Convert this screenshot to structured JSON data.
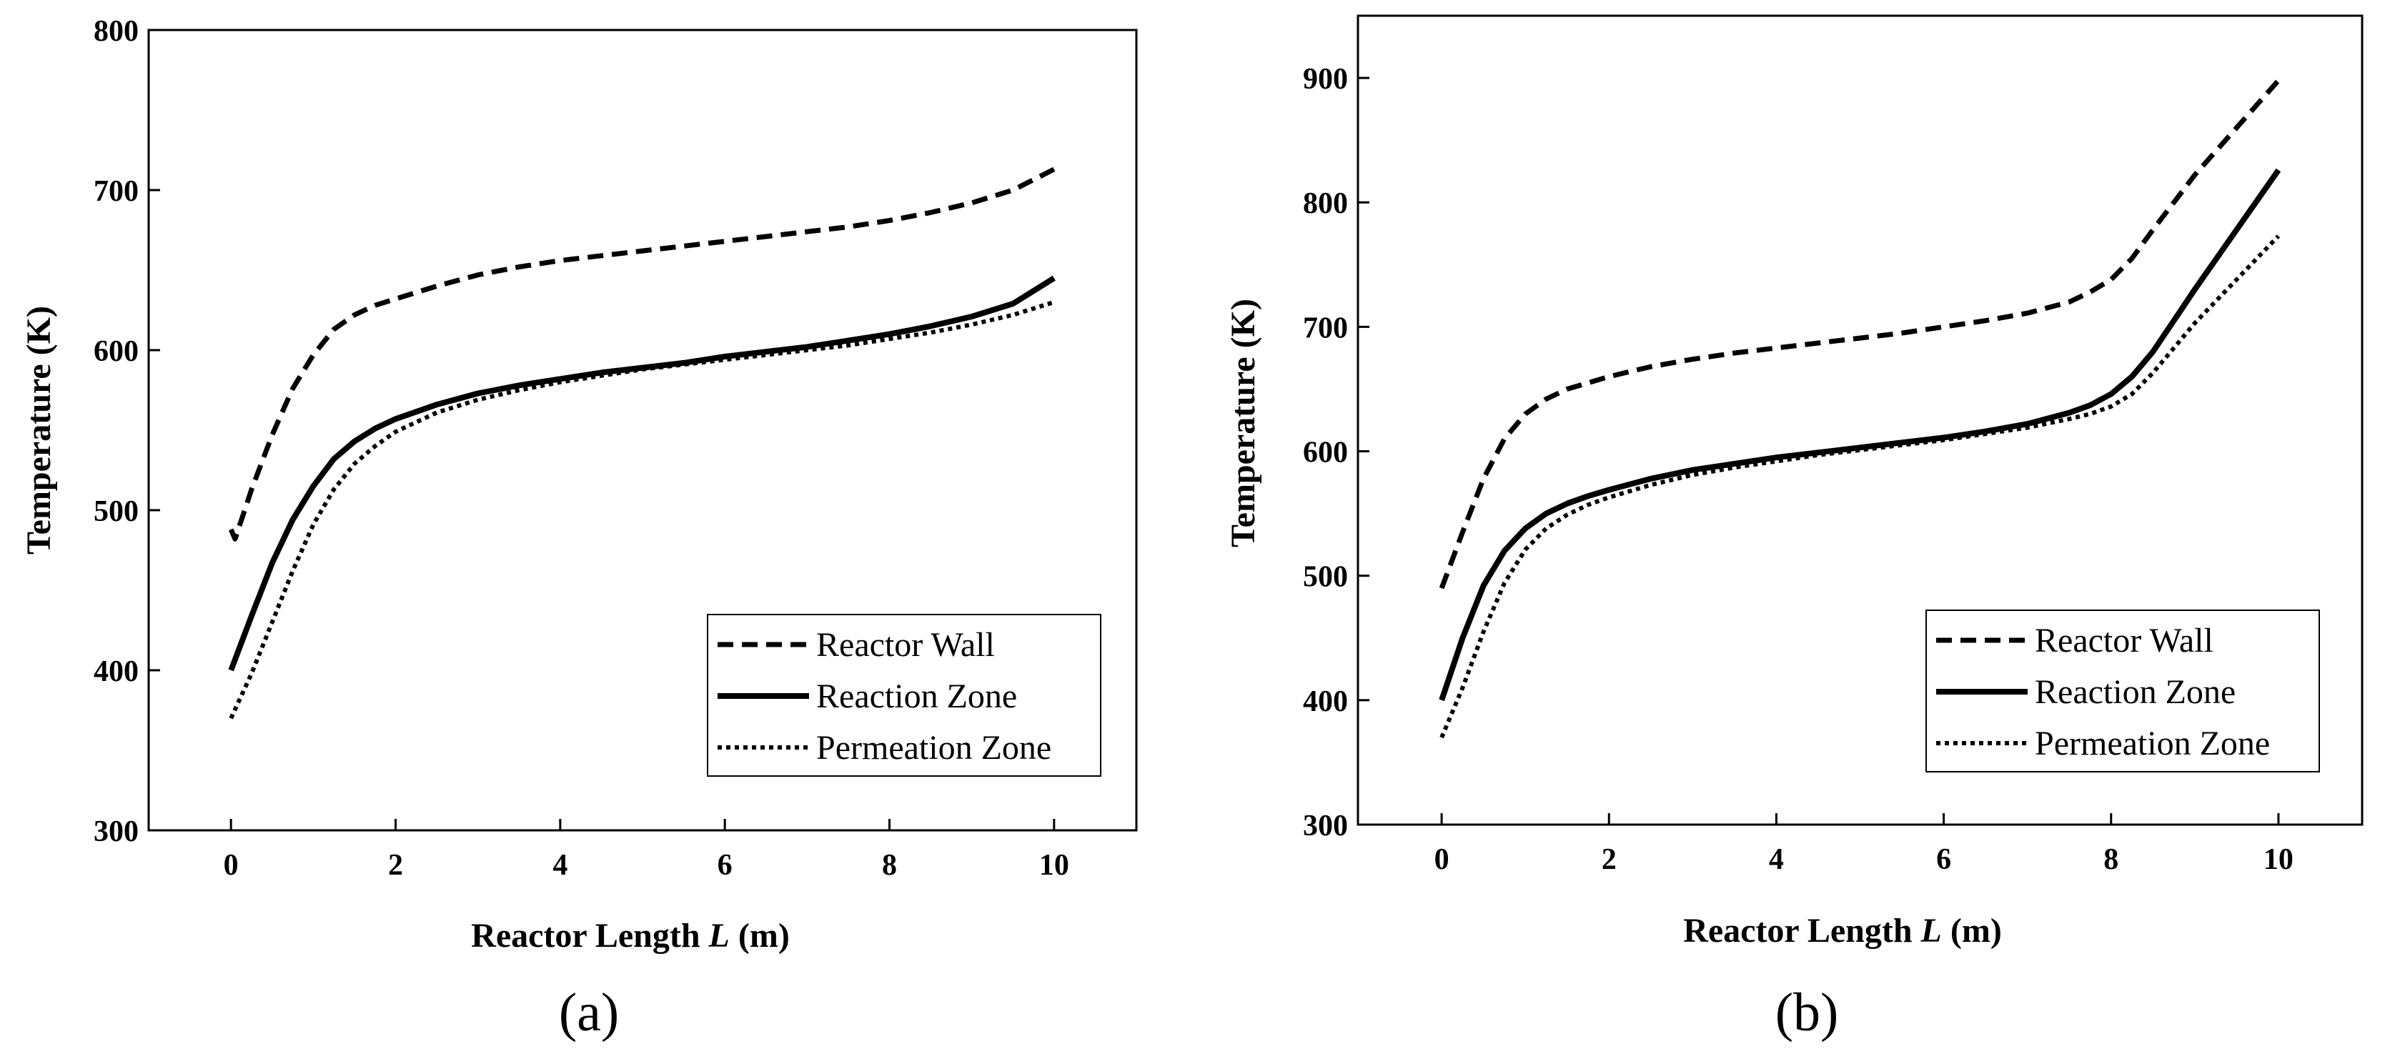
{
  "chart_data": [
    {
      "panel": "a",
      "type": "line",
      "caption": "(a)",
      "xlabel_parts": [
        "Reactor Length ",
        "L",
        " (m)"
      ],
      "ylabel": "Temperature (K)",
      "xlim": [
        -1,
        11
      ],
      "ylim": [
        300,
        800
      ],
      "xticks": [
        0,
        2,
        4,
        6,
        8,
        10
      ],
      "yticks": [
        300,
        400,
        500,
        600,
        700,
        800
      ],
      "xtick_labels": [
        "0",
        "2",
        "4",
        "6",
        "8",
        "10"
      ],
      "ytick_labels": [
        "300",
        "400",
        "500",
        "600",
        "700",
        "800"
      ],
      "grid": false,
      "legend_position": "bottom-right",
      "series": [
        {
          "name": "Reactor Wall",
          "style": "dashed",
          "x": [
            0,
            0.05,
            0.25,
            0.5,
            0.75,
            1,
            1.25,
            1.5,
            1.75,
            2,
            2.5,
            3,
            3.5,
            4,
            4.5,
            5,
            5.5,
            6,
            6.5,
            7,
            7.5,
            8,
            8.5,
            9,
            9.5,
            10
          ],
          "y": [
            488,
            482,
            513,
            547,
            576,
            597,
            613,
            622,
            628,
            632,
            640,
            647,
            652,
            656,
            659,
            662,
            665,
            668,
            671,
            674,
            677,
            681,
            686,
            692,
            700,
            713
          ]
        },
        {
          "name": "Reaction Zone",
          "style": "solid",
          "x": [
            0,
            0.25,
            0.5,
            0.75,
            1,
            1.25,
            1.5,
            1.75,
            2,
            2.5,
            3,
            3.5,
            4,
            4.5,
            5,
            5.5,
            6,
            6.5,
            7,
            7.5,
            8,
            8.5,
            9,
            9.5,
            10
          ],
          "y": [
            400,
            434,
            467,
            494,
            515,
            532,
            543,
            551,
            557,
            566,
            573,
            578,
            582,
            586,
            589,
            592,
            596,
            599,
            602,
            606,
            610,
            615,
            621,
            629,
            645
          ]
        },
        {
          "name": "Permeation Zone",
          "style": "dotted",
          "x": [
            0,
            0.25,
            0.5,
            0.75,
            1,
            1.25,
            1.5,
            1.75,
            2,
            2.5,
            3,
            3.5,
            4,
            4.5,
            5,
            5.5,
            6,
            6.5,
            7,
            7.5,
            8,
            8.5,
            9,
            9.5,
            10
          ],
          "y": [
            370,
            398,
            430,
            462,
            491,
            513,
            529,
            540,
            549,
            561,
            569,
            575,
            580,
            584,
            588,
            591,
            594,
            597,
            600,
            603,
            607,
            611,
            616,
            622,
            630
          ]
        }
      ]
    },
    {
      "panel": "b",
      "type": "line",
      "caption": "(b)",
      "xlabel_parts": [
        "Reactor Length ",
        "L",
        " (m)"
      ],
      "ylabel": "Temperature (K)",
      "xlim": [
        -1,
        11
      ],
      "ylim": [
        300,
        950
      ],
      "xticks": [
        0,
        2,
        4,
        6,
        8,
        10
      ],
      "yticks": [
        300,
        400,
        500,
        600,
        700,
        800,
        900
      ],
      "xtick_labels": [
        "0",
        "2",
        "4",
        "6",
        "8",
        "10"
      ],
      "ytick_labels": [
        "300",
        "400",
        "500",
        "600",
        "700",
        "800",
        "900"
      ],
      "grid": false,
      "legend_position": "bottom-right",
      "series": [
        {
          "name": "Reactor Wall",
          "style": "dashed",
          "x": [
            0,
            0.25,
            0.5,
            0.75,
            1,
            1.25,
            1.5,
            1.75,
            2,
            2.5,
            3,
            3.5,
            4,
            4.5,
            5,
            5.5,
            6,
            6.5,
            7,
            7.5,
            7.75,
            8,
            8.25,
            8.5,
            8.75,
            9,
            9.5,
            10
          ],
          "y": [
            490,
            535,
            578,
            610,
            630,
            642,
            650,
            655,
            660,
            668,
            674,
            679,
            683,
            687,
            691,
            695,
            700,
            705,
            711,
            720,
            728,
            738,
            755,
            778,
            800,
            822,
            860,
            898
          ]
        },
        {
          "name": "Reaction Zone",
          "style": "solid",
          "x": [
            0,
            0.25,
            0.5,
            0.75,
            1,
            1.25,
            1.5,
            1.75,
            2,
            2.5,
            3,
            3.5,
            4,
            4.5,
            5,
            5.5,
            6,
            6.5,
            7,
            7.5,
            7.75,
            8,
            8.25,
            8.5,
            8.75,
            9,
            9.5,
            10
          ],
          "y": [
            400,
            450,
            492,
            520,
            538,
            550,
            558,
            564,
            569,
            578,
            585,
            590,
            595,
            599,
            603,
            607,
            611,
            616,
            622,
            631,
            637,
            646,
            660,
            680,
            705,
            730,
            778,
            826
          ]
        },
        {
          "name": "Permeation Zone",
          "style": "dotted",
          "x": [
            0,
            0.25,
            0.5,
            0.75,
            1,
            1.25,
            1.5,
            1.75,
            2,
            2.5,
            3,
            3.5,
            4,
            4.5,
            5,
            5.5,
            6,
            6.5,
            7,
            7.5,
            7.75,
            8,
            8.25,
            8.5,
            8.75,
            9,
            9.5,
            10
          ],
          "y": [
            370,
            410,
            455,
            494,
            521,
            538,
            549,
            557,
            563,
            573,
            581,
            587,
            592,
            597,
            601,
            605,
            609,
            614,
            619,
            626,
            630,
            636,
            646,
            663,
            683,
            703,
            738,
            773
          ]
        }
      ]
    }
  ]
}
